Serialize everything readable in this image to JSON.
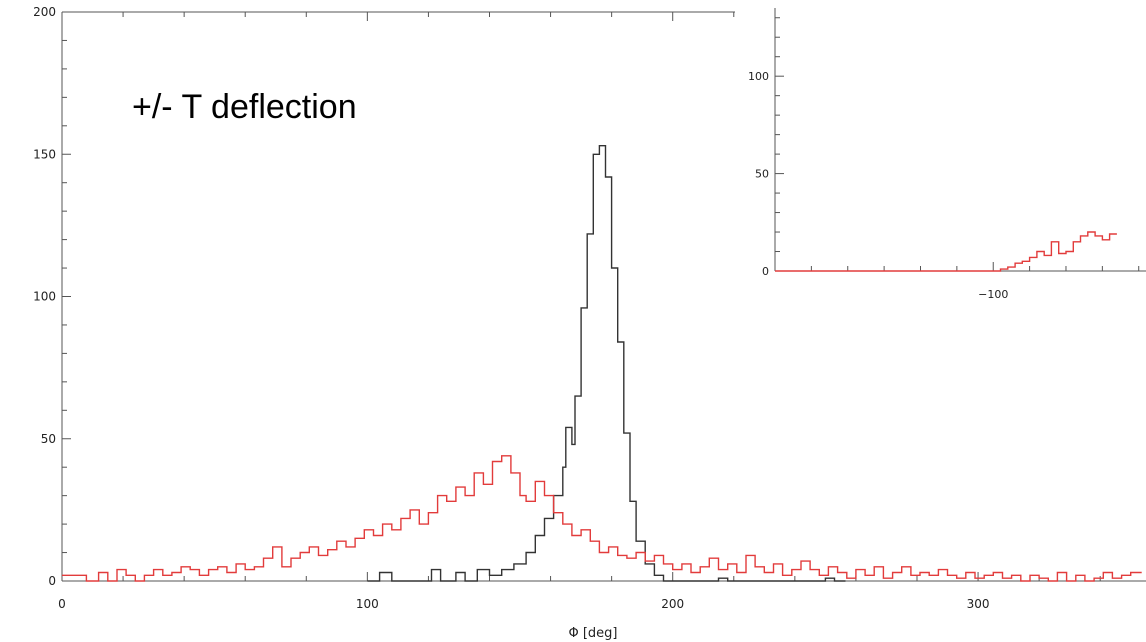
{
  "chart_data": [
    {
      "type": "histogram",
      "title": "",
      "annotation": "+/- T deflection",
      "xlabel": "Φ [deg]",
      "ylabel": "",
      "xlim": [
        0,
        355
      ],
      "ylim": [
        0,
        200
      ],
      "x_ticks": [
        0,
        100,
        200,
        300
      ],
      "y_ticks": [
        0,
        50,
        100,
        150,
        200
      ],
      "grid": false,
      "bin_width": 3.6,
      "series": [
        {
          "color": "#333333",
          "bins": [
            [
              100,
              0
            ],
            [
              104,
              3
            ],
            [
              108,
              0
            ],
            [
              118,
              0
            ],
            [
              121,
              4
            ],
            [
              124,
              0
            ],
            [
              126,
              0
            ],
            [
              129,
              3
            ],
            [
              132,
              0
            ],
            [
              136,
              4
            ],
            [
              140,
              2
            ],
            [
              144,
              4
            ],
            [
              148,
              6
            ],
            [
              152,
              10
            ],
            [
              155,
              16
            ],
            [
              158,
              22
            ],
            [
              161,
              30
            ],
            [
              164,
              40
            ],
            [
              165,
              54
            ],
            [
              167,
              48
            ],
            [
              168,
              65
            ],
            [
              170,
              96
            ],
            [
              172,
              122
            ],
            [
              174,
              150
            ],
            [
              176,
              153
            ],
            [
              178,
              142
            ],
            [
              180,
              110
            ],
            [
              182,
              84
            ],
            [
              184,
              52
            ],
            [
              186,
              28
            ],
            [
              188,
              14
            ],
            [
              191,
              6
            ],
            [
              194,
              2
            ],
            [
              197,
              0
            ],
            [
              215,
              1
            ],
            [
              218,
              0
            ],
            [
              250,
              1
            ],
            [
              253,
              0
            ]
          ]
        },
        {
          "color": "#e23b3b",
          "bins": [
            [
              0,
              2
            ],
            [
              4,
              2
            ],
            [
              8,
              0
            ],
            [
              12,
              3
            ],
            [
              15,
              0
            ],
            [
              18,
              4
            ],
            [
              21,
              2
            ],
            [
              24,
              0
            ],
            [
              27,
              2
            ],
            [
              30,
              4
            ],
            [
              33,
              2
            ],
            [
              36,
              3
            ],
            [
              39,
              5
            ],
            [
              42,
              4
            ],
            [
              45,
              2
            ],
            [
              48,
              4
            ],
            [
              51,
              5
            ],
            [
              54,
              3
            ],
            [
              57,
              6
            ],
            [
              60,
              4
            ],
            [
              63,
              5
            ],
            [
              66,
              8
            ],
            [
              69,
              12
            ],
            [
              72,
              5
            ],
            [
              75,
              8
            ],
            [
              78,
              10
            ],
            [
              81,
              12
            ],
            [
              84,
              9
            ],
            [
              87,
              11
            ],
            [
              90,
              14
            ],
            [
              93,
              12
            ],
            [
              96,
              15
            ],
            [
              99,
              18
            ],
            [
              102,
              16
            ],
            [
              105,
              20
            ],
            [
              108,
              18
            ],
            [
              111,
              22
            ],
            [
              114,
              25
            ],
            [
              117,
              20
            ],
            [
              120,
              24
            ],
            [
              123,
              30
            ],
            [
              126,
              28
            ],
            [
              129,
              33
            ],
            [
              132,
              30
            ],
            [
              135,
              38
            ],
            [
              138,
              34
            ],
            [
              141,
              42
            ],
            [
              144,
              44
            ],
            [
              147,
              38
            ],
            [
              150,
              30
            ],
            [
              152,
              28
            ],
            [
              155,
              35
            ],
            [
              158,
              30
            ],
            [
              161,
              24
            ],
            [
              164,
              20
            ],
            [
              167,
              16
            ],
            [
              170,
              18
            ],
            [
              173,
              14
            ],
            [
              176,
              10
            ],
            [
              179,
              12
            ],
            [
              182,
              9
            ],
            [
              185,
              8
            ],
            [
              188,
              10
            ],
            [
              191,
              7
            ],
            [
              194,
              9
            ],
            [
              197,
              6
            ],
            [
              200,
              4
            ],
            [
              203,
              6
            ],
            [
              206,
              3
            ],
            [
              209,
              5
            ],
            [
              212,
              8
            ],
            [
              215,
              4
            ],
            [
              218,
              6
            ],
            [
              221,
              3
            ],
            [
              224,
              9
            ],
            [
              227,
              5
            ],
            [
              230,
              3
            ],
            [
              233,
              6
            ],
            [
              236,
              2
            ],
            [
              239,
              4
            ],
            [
              242,
              7
            ],
            [
              245,
              4
            ],
            [
              248,
              2
            ],
            [
              251,
              5
            ],
            [
              254,
              3
            ],
            [
              257,
              1
            ],
            [
              260,
              4
            ],
            [
              263,
              2
            ],
            [
              266,
              5
            ],
            [
              269,
              1
            ],
            [
              272,
              3
            ],
            [
              275,
              5
            ],
            [
              278,
              2
            ],
            [
              281,
              3
            ],
            [
              284,
              2
            ],
            [
              287,
              4
            ],
            [
              290,
              2
            ],
            [
              293,
              1
            ],
            [
              296,
              3
            ],
            [
              299,
              1
            ],
            [
              302,
              2
            ],
            [
              305,
              3
            ],
            [
              308,
              1
            ],
            [
              311,
              2
            ],
            [
              314,
              0
            ],
            [
              317,
              2
            ],
            [
              320,
              1
            ],
            [
              323,
              0
            ],
            [
              326,
              3
            ],
            [
              329,
              0
            ],
            [
              332,
              2
            ],
            [
              335,
              0
            ],
            [
              338,
              1
            ],
            [
              341,
              3
            ],
            [
              344,
              1
            ],
            [
              347,
              2
            ],
            [
              350,
              3
            ]
          ]
        }
      ]
    },
    {
      "type": "histogram",
      "title": "",
      "xlabel": "",
      "ylabel": "",
      "xlim": [
        -160,
        -58
      ],
      "ylim": [
        0,
        135
      ],
      "x_ticks": [
        -100
      ],
      "x_tick_labels": [
        "−100"
      ],
      "y_ticks": [
        0,
        50,
        100
      ],
      "grid": false,
      "series": [
        {
          "color": "#e23b3b",
          "bins": [
            [
              -160,
              0
            ],
            [
              -98,
              1
            ],
            [
              -96,
              2
            ],
            [
              -94,
              4
            ],
            [
              -92,
              5
            ],
            [
              -90,
              7
            ],
            [
              -88,
              10
            ],
            [
              -86,
              8
            ],
            [
              -84,
              15
            ],
            [
              -82,
              9
            ],
            [
              -80,
              10
            ],
            [
              -78,
              15
            ],
            [
              -76,
              18
            ],
            [
              -74,
              20
            ],
            [
              -72,
              18
            ],
            [
              -70,
              16
            ],
            [
              -68,
              19
            ]
          ]
        }
      ]
    }
  ]
}
